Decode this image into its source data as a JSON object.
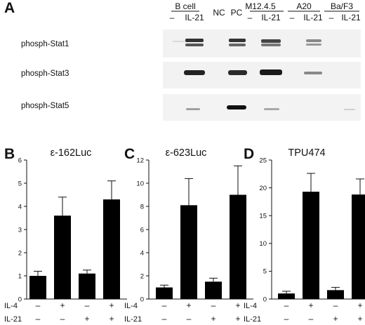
{
  "panel_a": {
    "letter": "A",
    "lane_groups": [
      {
        "name": "B cell",
        "lanes": [
          "–",
          "IL-21"
        ]
      },
      {
        "name": "NC",
        "lanes": []
      },
      {
        "name": "PC",
        "lanes": []
      },
      {
        "name": "M12.4.5",
        "lanes": [
          "–",
          "IL-21"
        ]
      },
      {
        "name": "A20",
        "lanes": [
          "–",
          "IL-21"
        ]
      },
      {
        "name": "Ba/F3",
        "lanes": [
          "–",
          "IL-21"
        ]
      }
    ],
    "blots": [
      {
        "label": "phosph-Stat1"
      },
      {
        "label": "phosph-Stat3"
      },
      {
        "label": "phosph-Stat5"
      }
    ]
  },
  "conditions": {
    "il4_label": "IL-4",
    "il21_label": "IL-21",
    "il4": [
      "–",
      "+",
      "–",
      "+"
    ],
    "il21": [
      "–",
      "–",
      "+",
      "+"
    ]
  },
  "chart_data": [
    {
      "letter": "B",
      "type": "bar",
      "title": "ε-162Luc",
      "categories": [
        "1",
        "2",
        "3",
        "4"
      ],
      "values": [
        1.0,
        3.6,
        1.1,
        4.3
      ],
      "errors": [
        0.2,
        0.8,
        0.15,
        0.8
      ],
      "ylim": [
        0,
        6
      ],
      "yticks": [
        0,
        1,
        2,
        3,
        4,
        5,
        6
      ],
      "bar_color": "#000000"
    },
    {
      "letter": "C",
      "type": "bar",
      "title": "ε-623Luc",
      "categories": [
        "1",
        "2",
        "3",
        "4"
      ],
      "values": [
        1.0,
        8.1,
        1.5,
        9.0
      ],
      "errors": [
        0.2,
        2.3,
        0.3,
        2.5
      ],
      "ylim": [
        0,
        12
      ],
      "yticks": [
        0,
        2,
        4,
        6,
        8,
        10,
        12
      ],
      "bar_color": "#000000"
    },
    {
      "letter": "D",
      "type": "bar",
      "title": "TPU474",
      "categories": [
        "1",
        "2",
        "3",
        "4"
      ],
      "values": [
        1.0,
        19.3,
        1.6,
        18.8
      ],
      "errors": [
        0.4,
        3.3,
        0.5,
        2.8
      ],
      "ylim": [
        0,
        25
      ],
      "yticks": [
        0,
        5,
        10,
        15,
        20,
        25
      ],
      "bar_color": "#000000"
    }
  ]
}
